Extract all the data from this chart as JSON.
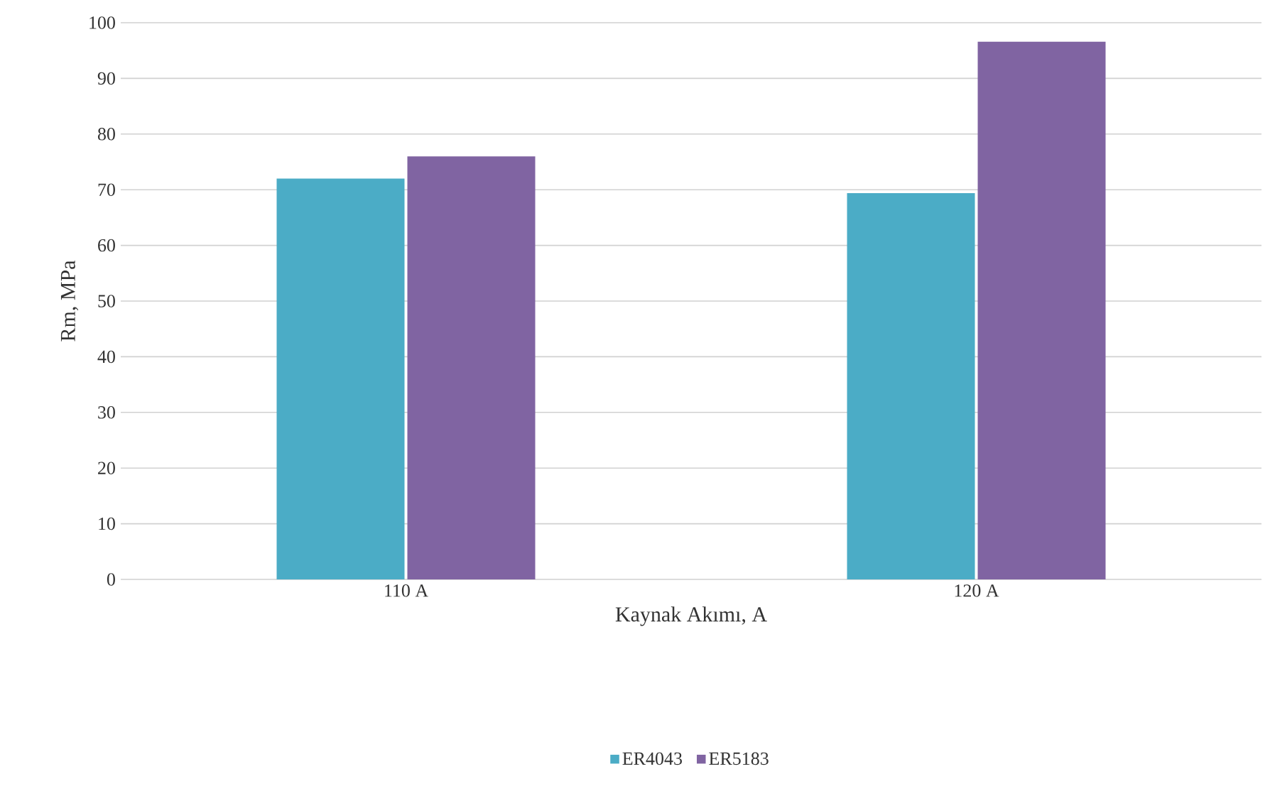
{
  "chart_data": {
    "type": "bar",
    "categories": [
      "110 A",
      "120 A"
    ],
    "xlabel": "Kaynak Akımı, A",
    "ylabel": "Rm, MPa",
    "series": [
      {
        "name": "ER4043",
        "color": "#4bacc6",
        "values": [
          72,
          69.4
        ]
      },
      {
        "name": "ER5183",
        "color": "#8064a2",
        "values": [
          76,
          96.6
        ]
      }
    ],
    "ylim": [
      0,
      100
    ],
    "yticks": [
      0,
      10,
      20,
      30,
      40,
      50,
      60,
      70,
      80,
      90,
      100
    ],
    "grid": "y",
    "legend": "bottom"
  }
}
